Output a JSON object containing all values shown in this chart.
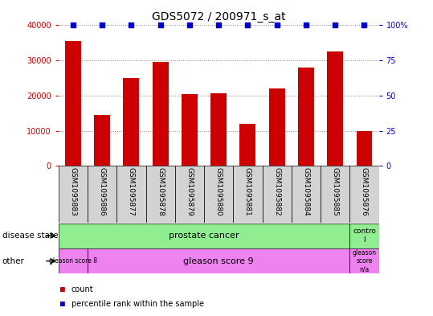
{
  "title": "GDS5072 / 200971_s_at",
  "samples": [
    "GSM1095883",
    "GSM1095886",
    "GSM1095877",
    "GSM1095878",
    "GSM1095879",
    "GSM1095880",
    "GSM1095881",
    "GSM1095882",
    "GSM1095884",
    "GSM1095885",
    "GSM1095876"
  ],
  "bar_values": [
    35500,
    14500,
    25000,
    29500,
    20500,
    20700,
    12000,
    22000,
    28000,
    32500,
    9800
  ],
  "percentile_values": [
    100,
    100,
    100,
    100,
    100,
    100,
    100,
    100,
    100,
    100,
    100
  ],
  "bar_color": "#cc0000",
  "percentile_color": "#0000cc",
  "ylim_left": [
    0,
    40000
  ],
  "ylim_right": [
    0,
    100
  ],
  "yticks_left": [
    0,
    10000,
    20000,
    30000,
    40000
  ],
  "yticks_right": [
    0,
    25,
    50,
    75,
    100
  ],
  "ytick_labels_left": [
    "0",
    "10000",
    "20000",
    "30000",
    "40000"
  ],
  "ytick_labels_right": [
    "0",
    "25",
    "50",
    "75",
    "100%"
  ],
  "disease_state_prostate_text": "prostate cancer",
  "disease_state_control_text": "contro\nl",
  "other_g8_text": "gleason score 8",
  "other_g9_text": "gleason score 9",
  "other_gna_text": "gleason\nscore\nn/a",
  "row_label_disease": "disease state",
  "row_label_other": "other",
  "legend_count": "count",
  "legend_percentile": "percentile rank within the sample",
  "bar_color_left_axis": "#cc0000",
  "right_axis_color": "#0000cc",
  "grid_color": "#888888",
  "light_green": "#90ee90",
  "magenta": "#ee82ee",
  "light_gray": "#d3d3d3"
}
